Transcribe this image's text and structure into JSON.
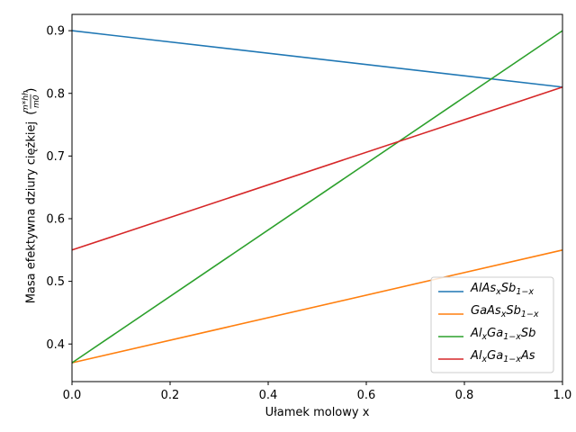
{
  "chart_data": {
    "type": "line",
    "xlabel": "Ułamek molowy x",
    "ylabel": "Masa efektywna dziury ciężkiej",
    "ylabel_fraction": {
      "numerator": "m*hh",
      "denominator": "m0"
    },
    "xlim": [
      0.0,
      1.0
    ],
    "ylim": [
      0.34,
      0.926
    ],
    "x_ticks": [
      "0.0",
      "0.2",
      "0.4",
      "0.6",
      "0.8",
      "1.0"
    ],
    "y_ticks": [
      "0.4",
      "0.5",
      "0.6",
      "0.7",
      "0.8",
      "0.9"
    ],
    "x_tick_values": [
      0.0,
      0.2,
      0.4,
      0.6,
      0.8,
      1.0
    ],
    "y_tick_values": [
      0.4,
      0.5,
      0.6,
      0.7,
      0.8,
      0.9
    ],
    "grid": false,
    "legend_position": "lower-right",
    "series": [
      {
        "name": "AlAs_xSb_1-x",
        "label_parts": [
          {
            "t": "AlAs"
          },
          {
            "t": "x",
            "sub": true
          },
          {
            "t": "Sb"
          },
          {
            "t": "1−x",
            "sub": true
          }
        ],
        "color": "#1f77b4",
        "x": [
          0.0,
          1.0
        ],
        "y": [
          0.9,
          0.81
        ]
      },
      {
        "name": "GaAs_xSb_1-x",
        "label_parts": [
          {
            "t": "GaAs"
          },
          {
            "t": "x",
            "sub": true
          },
          {
            "t": "Sb"
          },
          {
            "t": "1−x",
            "sub": true
          }
        ],
        "color": "#ff7f0e",
        "x": [
          0.0,
          1.0
        ],
        "y": [
          0.37,
          0.55
        ]
      },
      {
        "name": "Al_xGa_1-xSb",
        "label_parts": [
          {
            "t": "Al"
          },
          {
            "t": "x",
            "sub": true
          },
          {
            "t": "Ga"
          },
          {
            "t": "1−x",
            "sub": true
          },
          {
            "t": "Sb"
          }
        ],
        "color": "#2ca02c",
        "x": [
          0.0,
          1.0
        ],
        "y": [
          0.37,
          0.9
        ]
      },
      {
        "name": "Al_xGa_1-xAs",
        "label_parts": [
          {
            "t": "Al"
          },
          {
            "t": "x",
            "sub": true
          },
          {
            "t": "Ga"
          },
          {
            "t": "1−x",
            "sub": true
          },
          {
            "t": "As"
          }
        ],
        "color": "#d62728",
        "x": [
          0.0,
          1.0
        ],
        "y": [
          0.55,
          0.81
        ]
      }
    ]
  }
}
